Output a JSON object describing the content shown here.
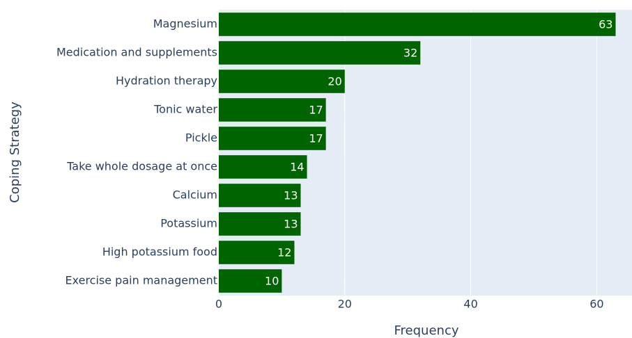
{
  "chart_data": {
    "type": "barh",
    "categories": [
      "Magnesium",
      "Medication and supplements",
      "Hydration therapy",
      "Tonic water",
      "Pickle",
      "Take whole dosage at once",
      "Calcium",
      "Potassium",
      "High potassium food",
      "Exercise pain management"
    ],
    "values": [
      63,
      32,
      20,
      17,
      17,
      14,
      13,
      13,
      12,
      10
    ],
    "color": "#006400",
    "xlabel": "Frequency",
    "ylabel": "Coping Strategy",
    "xlim": [
      0,
      65.6
    ],
    "xticks": [
      0,
      20,
      40,
      60
    ],
    "grid": true
  }
}
